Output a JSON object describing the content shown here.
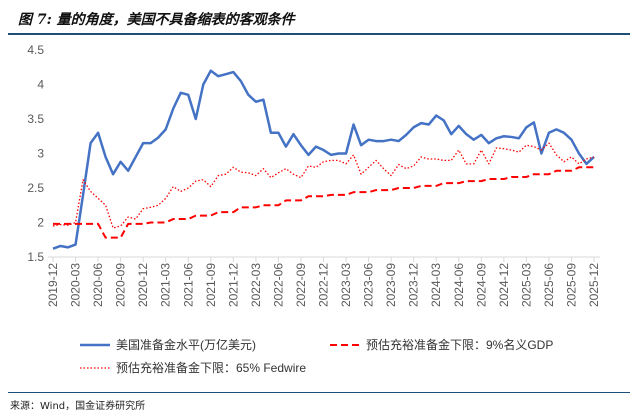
{
  "title": "图 7: 量的角度，美国不具备缩表的客观条件",
  "source": "来源：Wind，国金证券研究所",
  "chart_data": {
    "type": "line",
    "title": "",
    "xlabel": "",
    "ylabel": "",
    "ylim": [
      1.5,
      4.5
    ],
    "yticks": [
      "1.5",
      "2",
      "2.5",
      "3",
      "3.5",
      "4",
      "4.5"
    ],
    "xticks": [
      "2019-12",
      "2020-03",
      "2020-06",
      "2020-09",
      "2020-12",
      "2021-03",
      "2021-06",
      "2021-09",
      "2021-12",
      "2022-03",
      "2022-06",
      "2022-09",
      "2022-12",
      "2023-03",
      "2023-06",
      "2023-09",
      "2023-12",
      "2024-03",
      "2024-06",
      "2024-09",
      "2024-12",
      "2025-03",
      "2025-06",
      "2025-09",
      "2025-12"
    ],
    "x_start": "2019-12",
    "x_end": "2025-12",
    "frequency": "monthly",
    "grid": false,
    "legend_position": "bottom",
    "series": [
      {
        "name": "美国准备金水平(万亿美元)",
        "color": "#4472c4",
        "style": "solid",
        "values": [
          1.62,
          1.66,
          1.64,
          1.68,
          2.4,
          3.15,
          3.3,
          2.95,
          2.7,
          2.88,
          2.75,
          2.95,
          3.15,
          3.15,
          3.23,
          3.35,
          3.65,
          3.88,
          3.85,
          3.5,
          4.0,
          4.2,
          4.12,
          4.15,
          4.18,
          4.05,
          3.85,
          3.75,
          3.78,
          3.3,
          3.3,
          3.1,
          3.28,
          3.12,
          2.98,
          3.1,
          3.05,
          2.98,
          3.0,
          3.0,
          3.42,
          3.12,
          3.2,
          3.18,
          3.18,
          3.2,
          3.18,
          3.27,
          3.38,
          3.44,
          3.42,
          3.55,
          3.48,
          3.28,
          3.4,
          3.28,
          3.2,
          3.27,
          3.15,
          3.22,
          3.25,
          3.24,
          3.22,
          3.38,
          3.45,
          3.0,
          3.3,
          3.35,
          3.3,
          3.2,
          3.0,
          2.85,
          2.95
        ]
      },
      {
        "name": "预估充裕准备金下限：9%名义GDP",
        "color": "#ff0000",
        "style": "dashed",
        "values": [
          1.98,
          1.98,
          1.98,
          1.98,
          1.98,
          1.98,
          1.98,
          1.78,
          1.78,
          1.78,
          1.98,
          1.98,
          1.98,
          2.0,
          2.0,
          2.0,
          2.05,
          2.05,
          2.05,
          2.1,
          2.1,
          2.1,
          2.15,
          2.15,
          2.15,
          2.22,
          2.22,
          2.22,
          2.25,
          2.25,
          2.25,
          2.32,
          2.32,
          2.32,
          2.38,
          2.38,
          2.38,
          2.4,
          2.4,
          2.4,
          2.44,
          2.44,
          2.44,
          2.47,
          2.47,
          2.47,
          2.5,
          2.5,
          2.5,
          2.53,
          2.53,
          2.53,
          2.57,
          2.57,
          2.57,
          2.6,
          2.6,
          2.6,
          2.63,
          2.63,
          2.63,
          2.66,
          2.66,
          2.66,
          2.7,
          2.7,
          2.7,
          2.75,
          2.75,
          2.75,
          2.8,
          2.8,
          2.8
        ]
      },
      {
        "name": "预估充裕准备金下限：65% Fedwire",
        "color": "#ff0000",
        "style": "dotted",
        "values": [
          1.95,
          1.97,
          1.96,
          2.0,
          2.62,
          2.45,
          2.35,
          2.25,
          1.92,
          1.95,
          2.08,
          2.05,
          2.2,
          2.22,
          2.25,
          2.35,
          2.52,
          2.45,
          2.5,
          2.6,
          2.62,
          2.52,
          2.68,
          2.7,
          2.8,
          2.73,
          2.72,
          2.68,
          2.78,
          2.65,
          2.72,
          2.78,
          2.7,
          2.65,
          2.82,
          2.8,
          2.88,
          2.9,
          2.9,
          2.85,
          2.98,
          2.7,
          2.8,
          2.9,
          2.78,
          2.68,
          2.84,
          2.78,
          2.82,
          2.95,
          2.92,
          2.92,
          2.9,
          2.9,
          3.05,
          2.85,
          2.85,
          3.05,
          2.85,
          3.08,
          3.07,
          3.05,
          3.02,
          3.12,
          3.1,
          3.05,
          3.15,
          2.98,
          2.88,
          2.95,
          2.85,
          2.92,
          2.95
        ]
      }
    ]
  }
}
